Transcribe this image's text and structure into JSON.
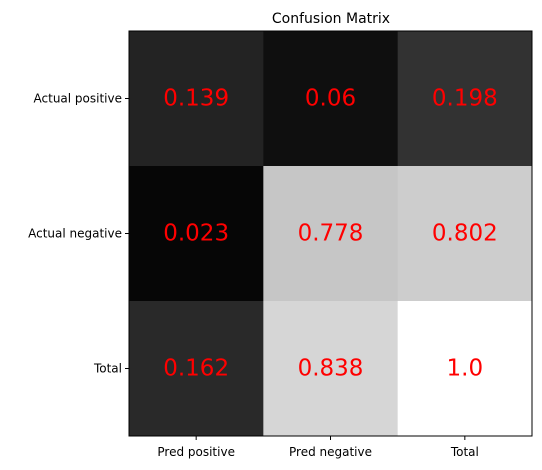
{
  "chart_data": {
    "type": "heatmap",
    "title": "Confusion Matrix",
    "colormap": "gray",
    "value_range": [
      0,
      1.0
    ],
    "row_labels": [
      "Actual positive",
      "Actual negative",
      "Total"
    ],
    "col_labels": [
      "Pred positive",
      "Pred negative",
      "Total"
    ],
    "values": [
      [
        0.139,
        0.06,
        0.198
      ],
      [
        0.023,
        0.778,
        0.802
      ],
      [
        0.162,
        0.838,
        1.0
      ]
    ],
    "cell_labels": [
      [
        "0.139",
        "0.06",
        "0.198"
      ],
      [
        "0.023",
        "0.778",
        "0.802"
      ],
      [
        "0.162",
        "0.838",
        "1.0"
      ]
    ],
    "annotation_color": "#ff0000",
    "frame_color": "#000000"
  }
}
